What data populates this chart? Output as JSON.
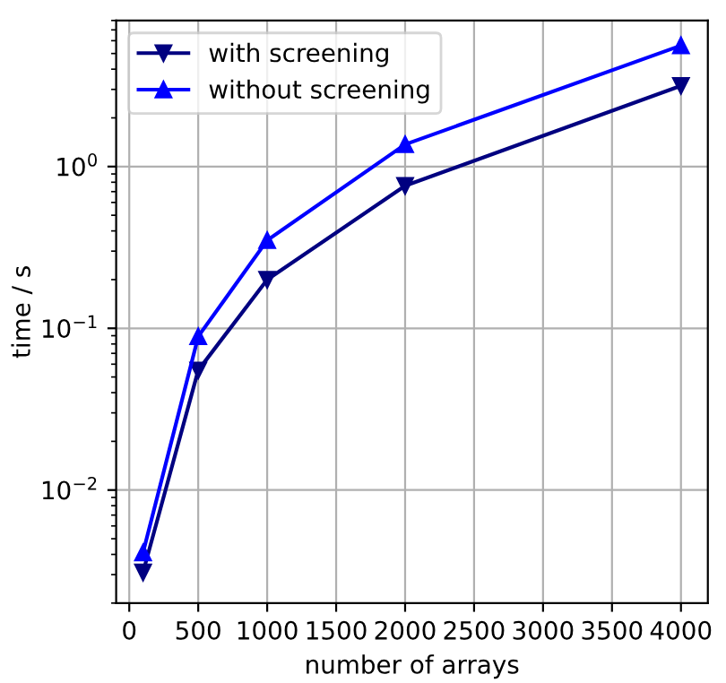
{
  "chart_data": {
    "type": "line",
    "xlabel": "number of arrays",
    "ylabel": "time / s",
    "x": [
      100,
      500,
      1000,
      2000,
      4000
    ],
    "series": [
      {
        "name": "with screening",
        "color": "#000080",
        "marker": "triangle_down",
        "values": [
          0.0031,
          0.055,
          0.2,
          0.76,
          3.16
        ]
      },
      {
        "name": "without screening",
        "color": "#0000ff",
        "marker": "triangle",
        "values": [
          0.0041,
          0.089,
          0.35,
          1.37,
          5.6
        ]
      }
    ],
    "log": "y",
    "xlim": [
      -95,
      4195
    ],
    "ylim": [
      0.002,
      8
    ],
    "xticks": [
      0,
      500,
      1000,
      1500,
      2000,
      2500,
      3000,
      3500,
      4000
    ],
    "yticks": [
      {
        "value": 0.01,
        "label": "10$^{−2}$"
      },
      {
        "value": 0.1,
        "label": "10$^{−1}$"
      },
      {
        "value": 1,
        "label": "10$^{0}$"
      }
    ],
    "grid": true,
    "legend": "top left",
    "line_style": "solid"
  }
}
